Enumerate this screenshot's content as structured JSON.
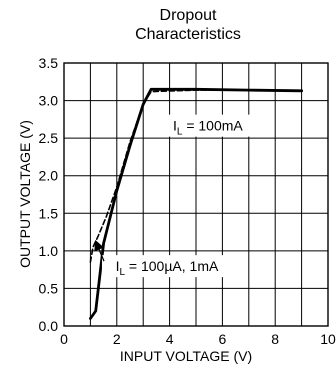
{
  "chart_data": {
    "type": "line",
    "title_lines": [
      "Dropout",
      "Characteristics"
    ],
    "xlabel": "INPUT VOLTAGE (V)",
    "ylabel": "OUTPUT VOLTAGE (V)",
    "xlim": [
      0,
      10
    ],
    "ylim": [
      0,
      3.5
    ],
    "x_ticks": [
      0,
      2,
      4,
      6,
      8,
      10
    ],
    "y_ticks": [
      0.0,
      0.5,
      1.0,
      1.5,
      2.0,
      2.5,
      3.0,
      3.5
    ],
    "x_tick_labels": [
      "0",
      "2",
      "4",
      "6",
      "8",
      "10"
    ],
    "y_tick_labels": [
      "0.0",
      "0.5",
      "1.0",
      "1.5",
      "2.0",
      "2.5",
      "3.0",
      "3.5"
    ],
    "grid": true,
    "series": [
      {
        "style": "solid",
        "x": [
          1.0,
          1.2,
          1.5,
          2.0,
          2.5,
          3.0,
          3.3,
          5.0,
          7.0,
          9.0
        ],
        "y": [
          0.1,
          0.2,
          1.1,
          1.8,
          2.4,
          2.95,
          3.15,
          3.15,
          3.14,
          3.13
        ]
      },
      {
        "style": "dashed",
        "x": [
          1.0,
          1.1,
          1.3,
          1.6,
          2.0,
          2.5,
          3.0,
          3.3,
          5.0,
          7.0,
          9.0
        ],
        "y": [
          0.85,
          1.05,
          1.2,
          1.45,
          1.85,
          2.45,
          2.95,
          3.12,
          3.14,
          3.14,
          3.13
        ]
      }
    ],
    "annotations": [
      {
        "label_main": "I",
        "label_sub": "L",
        "label_rest": " = 100mA",
        "x": 5.45,
        "y": 2.6,
        "arrow": false
      },
      {
        "label_main": "I",
        "label_sub": "L",
        "label_rest": " = 100µA, 1mA",
        "x": 3.9,
        "y": 0.73,
        "arrow_to": [
          1.2,
          1.13
        ]
      }
    ]
  },
  "colors": {
    "line": "#000000",
    "grid": "#000000",
    "background": "#ffffff"
  }
}
